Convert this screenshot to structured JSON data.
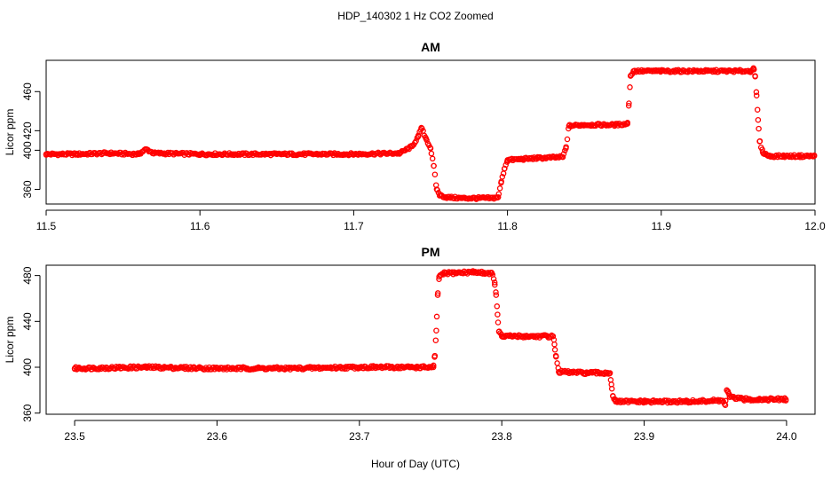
{
  "figure": {
    "title": "HDP_140302  1 Hz CO2 Zoomed",
    "xlabel": "Hour of Day (UTC)"
  },
  "chart_data": [
    {
      "type": "scatter",
      "title": "AM",
      "xlabel": "Hour of Day (UTC)",
      "ylabel": "Licor ppm",
      "xlim": [
        11.5,
        12.0
      ],
      "ylim": [
        345,
        492
      ],
      "xticks": [
        "11.5",
        "11.6",
        "11.7",
        "11.8",
        "11.9",
        "12.0"
      ],
      "yticks": [
        "360",
        "400",
        "420",
        "460"
      ],
      "ytick_values": [
        360,
        400,
        420,
        460
      ],
      "marker_color": "#ff0000",
      "series": [
        {
          "x": [
            11.5,
            11.52,
            11.54,
            11.56,
            11.565,
            11.57,
            11.6,
            11.65,
            11.7,
            11.73,
            11.738,
            11.742,
            11.744,
            11.747,
            11.75,
            11.752,
            11.754,
            11.756,
            11.76,
            11.77,
            11.78,
            11.79,
            11.794,
            11.796,
            11.798,
            11.8,
            11.81,
            11.82,
            11.836,
            11.838,
            11.84,
            11.85,
            11.87,
            11.878,
            11.879,
            11.88,
            11.882,
            11.9,
            11.93,
            11.95,
            11.958,
            11.96,
            11.961,
            11.962,
            11.963,
            11.964,
            11.966,
            11.97,
            11.98,
            11.99,
            11.9995
          ],
          "y": [
            396,
            396,
            397,
            396,
            401,
            397,
            396,
            396,
            396,
            397,
            404,
            414,
            423,
            412,
            402,
            384,
            360,
            354,
            352,
            351,
            351,
            351,
            352,
            368,
            381,
            390,
            391,
            392,
            393,
            402,
            425,
            426,
            426,
            427,
            448,
            476,
            481,
            481,
            481,
            481,
            481,
            484,
            476,
            456,
            431,
            409,
            398,
            394,
            394,
            394,
            394
          ]
        }
      ]
    },
    {
      "type": "scatter",
      "title": "PM",
      "xlabel": "Hour of Day (UTC)",
      "ylabel": "Licor ppm",
      "xlim": [
        23.48,
        24.02
      ],
      "ylim": [
        359,
        489
      ],
      "xticks": [
        "23.5",
        "23.6",
        "23.7",
        "23.8",
        "23.9",
        "24.0"
      ],
      "yticks": [
        "360",
        "400",
        "440",
        "480"
      ],
      "ytick_values": [
        360,
        400,
        440,
        480
      ],
      "marker_color": "#ff0000",
      "series": [
        {
          "x": [
            23.5,
            23.55,
            23.6,
            23.65,
            23.7,
            23.74,
            23.752,
            23.753,
            23.754,
            23.755,
            23.756,
            23.76,
            23.78,
            23.793,
            23.795,
            23.796,
            23.797,
            23.798,
            23.8,
            23.82,
            23.836,
            23.837,
            23.838,
            23.84,
            23.86,
            23.876,
            23.877,
            23.878,
            23.88,
            23.9,
            23.93,
            23.955,
            23.957,
            23.958,
            23.959,
            23.96,
            23.97,
            23.98,
            23.9995
          ],
          "y": [
            399,
            400,
            399,
            399,
            400,
            400,
            400,
            410,
            432,
            463,
            479,
            482,
            483,
            482,
            474,
            463,
            446,
            431,
            427,
            427,
            427,
            420,
            410,
            396,
            395,
            395,
            385,
            375,
            370,
            370,
            370,
            371,
            367,
            380,
            378,
            374,
            372,
            372,
            372
          ]
        }
      ]
    }
  ]
}
